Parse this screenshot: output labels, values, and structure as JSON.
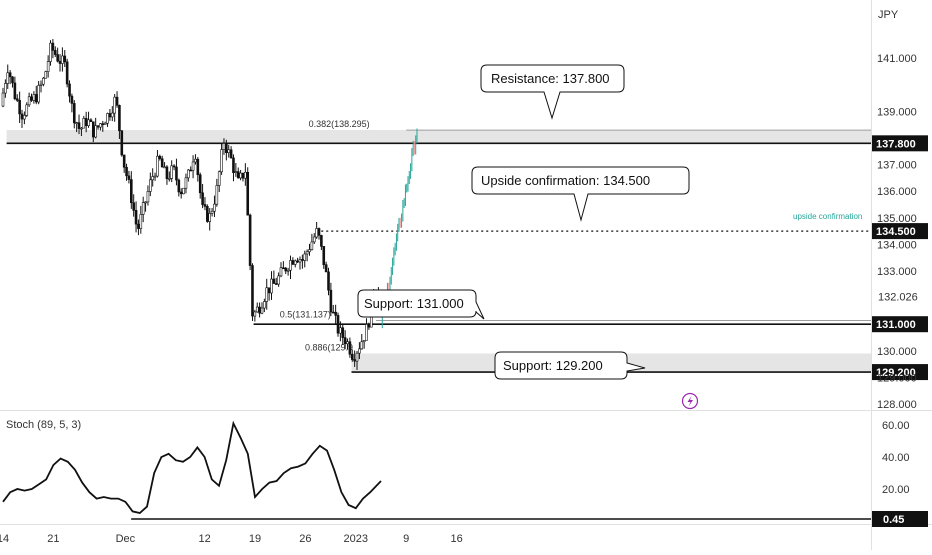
{
  "currency_label": "JPY",
  "stoch_label": "Stoch (89, 5, 3)",
  "colors": {
    "up": "#ffffff",
    "down": "#111111",
    "zone": "#e5e5e5",
    "green": "#26a69a",
    "accent": "#9c27b0"
  },
  "chart_data": {
    "type": "candlestick",
    "price_ylim": [
      127.6,
      142.6
    ],
    "price_ticks": [
      128.0,
      129.0,
      130.0,
      131.0,
      132.0,
      133.0,
      134.0,
      135.0,
      136.0,
      137.0,
      138.0,
      139.0,
      140.0,
      141.0
    ],
    "price_tick_labels": [
      "128.000",
      "129.000",
      "130.000",
      "",
      "",
      "133.000",
      "134.000",
      "135.000",
      "136.000",
      "137.000",
      "",
      "139.000",
      "",
      "141.000"
    ],
    "current_price_label": "132.026",
    "x_ticks": [
      {
        "label": "14",
        "day": 14
      },
      {
        "label": "21",
        "day": 21
      },
      {
        "label": "Dec",
        "day": 31
      },
      {
        "label": "12",
        "day": 42
      },
      {
        "label": "19",
        "day": 49
      },
      {
        "label": "26",
        "day": 56
      },
      {
        "label": "2023",
        "day": 63
      },
      {
        "label": "9",
        "day": 70
      },
      {
        "label": "16",
        "day": 77
      }
    ],
    "price_path": [
      [
        14,
        139.2
      ],
      [
        15,
        140.7
      ],
      [
        16,
        139.6
      ],
      [
        17,
        138.9
      ],
      [
        18,
        139.3
      ],
      [
        19,
        139.6
      ],
      [
        20,
        140.2
      ],
      [
        21,
        141.4
      ],
      [
        22,
        141.0
      ],
      [
        23,
        140.7
      ],
      [
        24,
        139.0
      ],
      [
        25,
        138.3
      ],
      [
        26,
        138.7
      ],
      [
        27,
        138.2
      ],
      [
        28,
        138.6
      ],
      [
        29,
        138.9
      ],
      [
        30,
        139.5
      ],
      [
        31,
        137.2
      ],
      [
        32,
        136.0
      ],
      [
        33,
        134.5
      ],
      [
        34,
        135.5
      ],
      [
        35,
        136.5
      ],
      [
        36,
        137.2
      ],
      [
        37,
        136.5
      ],
      [
        38,
        136.8
      ],
      [
        39,
        136.0
      ],
      [
        40,
        136.5
      ],
      [
        41,
        137.6
      ],
      [
        42,
        135.3
      ],
      [
        43,
        135.0
      ],
      [
        44,
        136.0
      ],
      [
        45,
        137.9
      ],
      [
        46,
        137.2
      ],
      [
        47,
        136.3
      ],
      [
        48,
        136.8
      ],
      [
        49,
        131.3
      ],
      [
        50,
        131.7
      ],
      [
        51,
        132.3
      ],
      [
        52,
        132.5
      ],
      [
        53,
        132.9
      ],
      [
        54,
        133.3
      ],
      [
        55,
        133.6
      ],
      [
        56,
        133.4
      ],
      [
        57,
        134.0
      ],
      [
        58,
        134.5
      ],
      [
        59,
        133.2
      ],
      [
        60,
        131.5
      ],
      [
        61,
        130.7
      ],
      [
        62,
        130.4
      ],
      [
        63,
        129.8
      ],
      [
        64,
        130.3
      ],
      [
        65,
        130.9
      ],
      [
        66,
        132.6
      ],
      [
        66.5,
        132.0
      ]
    ],
    "projection": {
      "start": [
        66.5,
        131.0
      ],
      "end": [
        71.5,
        138.3
      ],
      "color": "#26a69a"
    },
    "levels": [
      {
        "name": "resistance",
        "price": 137.8,
        "tag": "137.800",
        "from_day": 14.5
      },
      {
        "name": "upside-confirmation",
        "price": 134.5,
        "tag": "134.500",
        "from_day": 58.2,
        "dotted": true
      },
      {
        "name": "support-131",
        "price": 131.0,
        "tag": "131.000",
        "from_day": 48.8
      },
      {
        "name": "support-129",
        "price": 129.2,
        "tag": "129.200",
        "from_day": 62.4
      }
    ],
    "zones": [
      {
        "name": "resistance-zone",
        "from": 137.8,
        "to": 138.3,
        "from_day": 14.5
      },
      {
        "name": "support-zone",
        "from": 129.2,
        "to": 129.9,
        "from_day": 62.4
      }
    ],
    "fib_labels": [
      {
        "name": "fib-0382",
        "text": "0.382(138.295)",
        "price": 138.295,
        "day": 62.0,
        "line_from": 70.0
      },
      {
        "name": "fib-05",
        "text": "0.5(131.137)",
        "price": 131.137,
        "day": 58.0,
        "line_from": 65.8
      },
      {
        "name": "fib-0886",
        "text": "0.886(129.9",
        "price": 129.9,
        "day": 61.5,
        "line_from": 0
      }
    ],
    "callouts": [
      {
        "name": "resistance-callout",
        "text": "Resistance: 137.800"
      },
      {
        "name": "upside-callout",
        "text": "Upside confirmation: 134.500"
      },
      {
        "name": "support131-callout",
        "text": "Support: 131.000"
      },
      {
        "name": "support129-callout",
        "text": "Support: 129.200"
      }
    ],
    "upside_note": "upside confirmation",
    "stoch": {
      "ylim": [
        0,
        65
      ],
      "ticks": [
        20,
        40,
        60
      ],
      "tick_labels": [
        "20.00",
        "40.00",
        "60.00"
      ],
      "last_label": "0.45",
      "floor_from_day": 31.8,
      "path": [
        [
          14,
          12
        ],
        [
          15,
          18
        ],
        [
          16,
          20
        ],
        [
          17,
          19
        ],
        [
          18,
          20
        ],
        [
          19,
          23
        ],
        [
          20,
          26
        ],
        [
          21,
          35
        ],
        [
          22,
          39
        ],
        [
          23,
          37
        ],
        [
          24,
          32
        ],
        [
          25,
          24
        ],
        [
          26,
          18
        ],
        [
          27,
          14
        ],
        [
          28,
          15
        ],
        [
          29,
          14
        ],
        [
          30,
          14
        ],
        [
          31,
          12
        ],
        [
          32,
          6
        ],
        [
          33,
          5
        ],
        [
          34,
          9
        ],
        [
          35,
          30
        ],
        [
          36,
          40
        ],
        [
          37,
          42
        ],
        [
          38,
          38
        ],
        [
          39,
          37
        ],
        [
          40,
          40
        ],
        [
          41,
          46
        ],
        [
          42,
          40
        ],
        [
          43,
          26
        ],
        [
          44,
          22
        ],
        [
          45,
          38
        ],
        [
          46,
          61
        ],
        [
          47,
          52
        ],
        [
          48,
          42
        ],
        [
          49,
          15
        ],
        [
          50,
          20
        ],
        [
          51,
          24
        ],
        [
          52,
          25
        ],
        [
          53,
          30
        ],
        [
          54,
          33
        ],
        [
          55,
          34
        ],
        [
          56,
          36
        ],
        [
          57,
          42
        ],
        [
          58,
          47
        ],
        [
          59,
          44
        ],
        [
          60,
          32
        ],
        [
          61,
          18
        ],
        [
          62,
          10
        ],
        [
          63,
          8
        ],
        [
          64,
          14
        ],
        [
          65,
          18
        ],
        [
          66.5,
          25
        ]
      ]
    }
  }
}
